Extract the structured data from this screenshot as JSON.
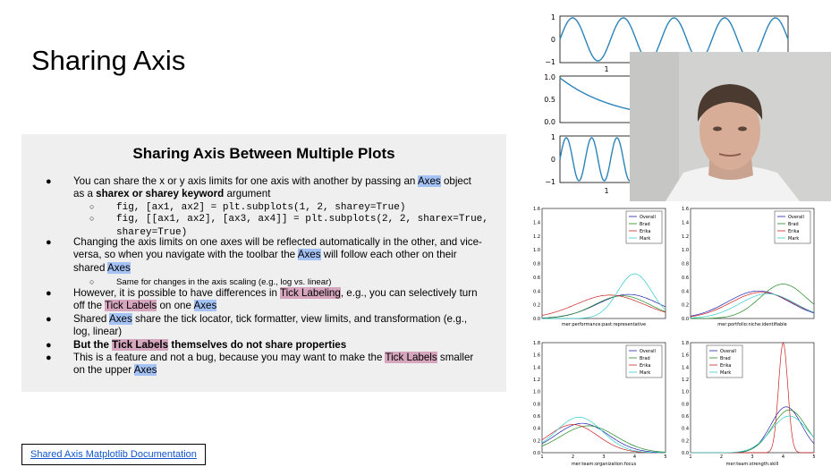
{
  "slide": {
    "title": "Sharing Axis"
  },
  "box": {
    "heading": "Sharing Axis Between Multiple Plots",
    "b1_pre": "You can share the x or y axis limits for one axis with another by passing an ",
    "b1_axes": "Axes",
    "b1_mid": " object",
    "b1_line2_pre": "as a ",
    "b1_bold": "sharex or sharey keyword",
    "b1_post": " argument",
    "code1": "fig, [ax1, ax2] = plt.subplots(1, 2, sharey=True)",
    "code2a": "fig, [[ax1, ax2], [ax3, ax4]] = plt.subplots(2, 2, sharex=True,",
    "code2b": "sharey=True)",
    "b2_line1": "Changing the axis limits on one axes will be reflected automatically in the other, and vice-",
    "b2_line2_pre": "versa, so when you navigate with the toolbar the ",
    "b2_axes": "Axes",
    "b2_line2_post": " will follow each other on their",
    "b2_line3_pre": "shared ",
    "b2_line3_axes": "Axes",
    "sub3": "Same for changes in the axis scaling (e.g., log vs. linear)",
    "b3_pre": "However, it is possible to have differences in ",
    "b3_tick": "Tick Labeling",
    "b3_post": ", e.g., you can selectively turn",
    "b3_line2_pre": "off the ",
    "b3_line2_tick": "Tick Labels",
    "b3_line2_mid": " on one ",
    "b3_line2_axes": "Axes",
    "b4_pre": "Shared ",
    "b4_axes": "Axes",
    "b4_post": " share the tick locator, tick formatter, view limits, and transformation (e.g.,",
    "b4_line2": "log, linear)",
    "b5_pre": "But the ",
    "b5_tick": "Tick Labels",
    "b5_post": " themselves do not share properties",
    "b6_pre": "This is a feature and not a bug, because you may want to make the ",
    "b6_tick": "Tick Labels",
    "b6_post": " smaller",
    "b6_line2_pre": "on the upper ",
    "b6_line2_axes": "Axes"
  },
  "link": {
    "label": "Shared Axis Matplotlib Documentation"
  },
  "top_plots": {
    "p1_yticks": [
      "1",
      "0",
      "−1"
    ],
    "p1_xtick": "1",
    "p2_yticks": [
      "1.0",
      "0.5",
      "0.0"
    ],
    "p3_yticks": [
      "1",
      "0",
      "−1"
    ],
    "p3_xtick": "1",
    "line_color": "#2b83ba"
  },
  "grid_plots": {
    "legend": [
      "Overall",
      "Brad",
      "Erika",
      "Mark"
    ],
    "colors": {
      "Overall": "#2222aa",
      "Brad": "#228822",
      "Erika": "#cc2222",
      "Mark": "#33cccc"
    },
    "yticks_top": [
      "1.6",
      "1.4",
      "1.2",
      "1.0",
      "0.8",
      "0.6",
      "0.4",
      "0.2",
      "0.0"
    ],
    "yticks_bottom": [
      "1.8",
      "1.6",
      "1.4",
      "1.2",
      "1.0",
      "0.8",
      "0.6",
      "0.4",
      "0.2",
      "0.0"
    ],
    "xticks": [
      "1",
      "2",
      "3",
      "4",
      "5"
    ],
    "xlabels": [
      "mer:performance:past:representative",
      "mer:portfolio:niche:identifiable",
      "mer:team:organization:focus",
      "mer:team:strength:skill"
    ]
  }
}
